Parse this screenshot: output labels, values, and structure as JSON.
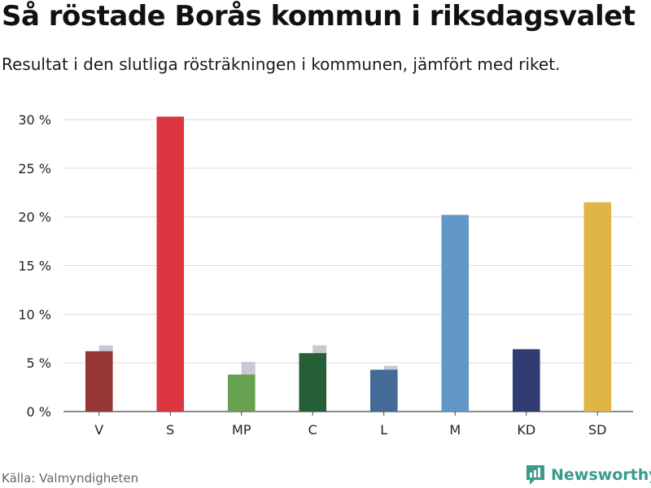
{
  "chart_data": {
    "type": "bar",
    "title": "Så röstade Borås kommun i riksdagsvalet",
    "subtitle": "Resultat i den slutliga rösträkningen i kommunen, jämfört med riket.",
    "categories": [
      "V",
      "S",
      "MP",
      "C",
      "L",
      "M",
      "KD",
      "SD"
    ],
    "series": [
      {
        "values": [
          6.2,
          30.3,
          3.8,
          6.0,
          4.3,
          20.2,
          6.4,
          21.5
        ],
        "colors": [
          "#953735",
          "#dd3640",
          "#67a050",
          "#265f35",
          "#446b97",
          "#6097c6",
          "#303b72",
          "#e0b446"
        ]
      },
      {
        "values": [
          6.8,
          30.3,
          5.1,
          6.8,
          4.7,
          19.2,
          5.4,
          20.6
        ],
        "color": "#c9c8d4"
      }
    ],
    "ylim": [
      0,
      30
    ],
    "yticks": [
      0,
      5,
      10,
      15,
      20,
      25,
      30
    ],
    "ytick_labels": [
      "0 %",
      "5 %",
      "10 %",
      "15 %",
      "20 %",
      "25 %",
      "30 %"
    ],
    "grid": true,
    "legend": "none"
  },
  "source": "Källa: Valmyndigheten",
  "logo": {
    "text": "Newsworthy",
    "icon": "bar-chart-speech-icon",
    "color": "#3a9a8c"
  }
}
